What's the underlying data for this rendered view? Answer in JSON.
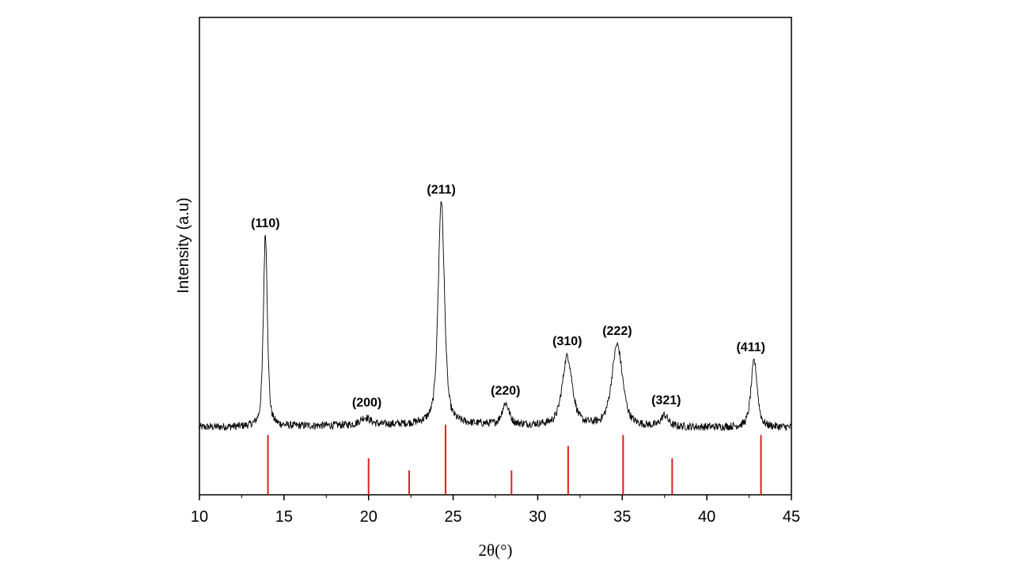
{
  "chart_data": {
    "type": "line",
    "xlabel": "2θ(°)",
    "ylabel": "Intensity (a.u)",
    "xlim": [
      10,
      45
    ],
    "x_ticks": [
      "10",
      "15",
      "20",
      "25",
      "30",
      "35",
      "40",
      "45"
    ],
    "grid": false,
    "pattern": {
      "description_free": true,
      "baseline": 0.08,
      "peaks": [
        {
          "x": 13.9,
          "height": 0.78,
          "width": 0.14
        },
        {
          "x": 19.8,
          "height": 0.03,
          "width": 0.35
        },
        {
          "x": 24.3,
          "height": 0.91,
          "width": 0.22
        },
        {
          "x": 28.1,
          "height": 0.085,
          "width": 0.25
        },
        {
          "x": 31.75,
          "height": 0.28,
          "width": 0.35
        },
        {
          "x": 34.7,
          "height": 0.33,
          "width": 0.38
        },
        {
          "x": 37.5,
          "height": 0.045,
          "width": 0.25
        },
        {
          "x": 42.8,
          "height": 0.27,
          "width": 0.22
        }
      ]
    },
    "peak_labels": [
      {
        "text": "(110)",
        "x": 13.9
      },
      {
        "text": "(200)",
        "x": 19.9
      },
      {
        "text": "(211)",
        "x": 24.3
      },
      {
        "text": "(220)",
        "x": 28.1
      },
      {
        "text": "(310)",
        "x": 31.75
      },
      {
        "text": "(222)",
        "x": 34.7
      },
      {
        "text": "(321)",
        "x": 37.6
      },
      {
        "text": "(411)",
        "x": 42.6
      }
    ],
    "reference_lines": {
      "color": "#e02020",
      "positions": [
        14.05,
        20.0,
        22.4,
        24.55,
        28.45,
        31.8,
        35.05,
        37.95,
        43.2
      ],
      "relative_heights": [
        0.98,
        0.6,
        0.4,
        1.15,
        0.4,
        0.8,
        0.98,
        0.6,
        0.98
      ]
    },
    "colors": {
      "line": "#000000",
      "reference": "#e02020"
    }
  }
}
